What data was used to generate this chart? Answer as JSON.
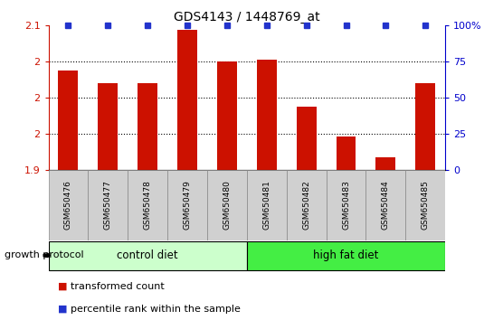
{
  "title": "GDS4143 / 1448769_at",
  "samples": [
    "GSM650476",
    "GSM650477",
    "GSM650478",
    "GSM650479",
    "GSM650480",
    "GSM650481",
    "GSM650482",
    "GSM650483",
    "GSM650484",
    "GSM650485"
  ],
  "transformed_counts": [
    2.03,
    2.016,
    2.016,
    2.075,
    2.04,
    2.042,
    1.99,
    1.957,
    1.934,
    2.016
  ],
  "percentile_ranks": [
    100,
    100,
    100,
    100,
    100,
    100,
    100,
    100,
    100,
    100
  ],
  "groups": [
    {
      "label": "control diet",
      "indices": [
        0,
        1,
        2,
        3,
        4
      ],
      "color": "#ccffcc"
    },
    {
      "label": "high fat diet",
      "indices": [
        5,
        6,
        7,
        8,
        9
      ],
      "color": "#44ee44"
    }
  ],
  "group_label": "growth protocol",
  "ylim_left": [
    1.92,
    2.08
  ],
  "ylim_right": [
    0,
    100
  ],
  "yticks_left": [
    1.92,
    1.96,
    2.0,
    2.04,
    2.08
  ],
  "yticks_right": [
    0,
    25,
    50,
    75,
    100
  ],
  "grid_lines": [
    1.96,
    2.0,
    2.04
  ],
  "bar_color": "#cc1100",
  "dot_color": "#2233cc",
  "bar_width": 0.5,
  "tick_color_left": "#cc1100",
  "tick_color_right": "#0000cc",
  "legend_items": [
    {
      "color": "#cc1100",
      "label": "transformed count"
    },
    {
      "color": "#2233cc",
      "label": "percentile rank within the sample"
    }
  ]
}
